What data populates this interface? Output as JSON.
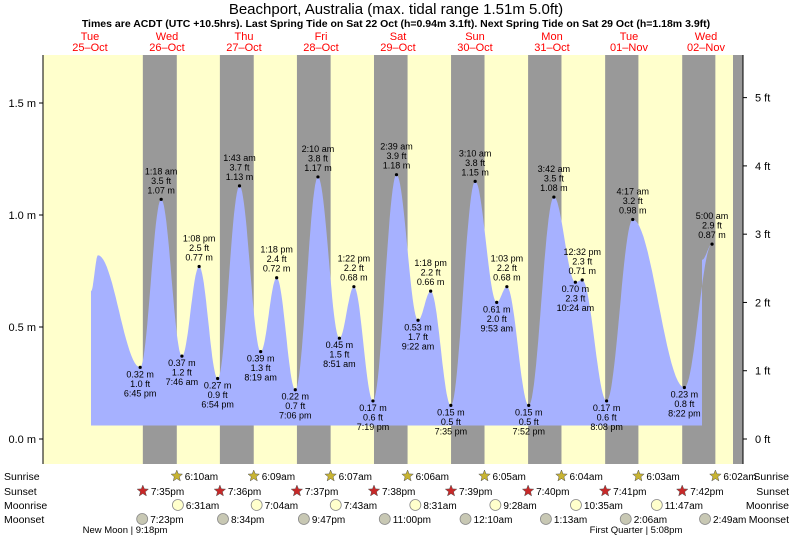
{
  "chart_data": {
    "type": "area",
    "title": "Beachport, Australia (max. tidal range 1.51m 5.0ft)",
    "subtitle": "Times are ACDT (UTC +10.5hrs). Last Spring Tide on Sat 22 Oct (h=0.94m 3.1ft). Next Spring Tide on Sat 29 Oct (h=1.18m 3.9ft)",
    "days": [
      {
        "dow": "Tue",
        "date": "25–Oct"
      },
      {
        "dow": "Wed",
        "date": "26–Oct"
      },
      {
        "dow": "Thu",
        "date": "27–Oct"
      },
      {
        "dow": "Fri",
        "date": "28–Oct"
      },
      {
        "dow": "Sat",
        "date": "29–Oct"
      },
      {
        "dow": "Sun",
        "date": "30–Oct"
      },
      {
        "dow": "Mon",
        "date": "31–Oct"
      },
      {
        "dow": "Tue",
        "date": "01–Nov"
      },
      {
        "dow": "Wed",
        "date": "02–Nov"
      }
    ],
    "y_left": {
      "unit": "m",
      "ylim": [
        -0.04,
        1.7
      ],
      "ticks": [
        {
          "v": 0,
          "label": "0.0 m"
        },
        {
          "v": 0.5,
          "label": "0.5 m"
        },
        {
          "v": 1.0,
          "label": "1.0 m"
        },
        {
          "v": 1.5,
          "label": "1.5 m"
        }
      ]
    },
    "y_right": {
      "unit": "ft",
      "ticks": [
        {
          "v": 0,
          "label": "0 ft"
        },
        {
          "v": 1,
          "label": "1 ft"
        },
        {
          "v": 2,
          "label": "2 ft"
        },
        {
          "v": 3,
          "label": "3 ft"
        },
        {
          "v": 4,
          "label": "4 ft"
        },
        {
          "v": 5,
          "label": "5 ft"
        }
      ]
    },
    "tides": [
      {
        "day": 0,
        "time": "6:45 pm",
        "h": 0.32,
        "ft": "1.0 ft",
        "m": "0.32 m",
        "type": "low"
      },
      {
        "day": 1,
        "time": "1:18 am",
        "h": 1.07,
        "ft": "3.5 ft",
        "m": "1.07 m",
        "type": "high"
      },
      {
        "day": 1,
        "time": "7:46 am",
        "h": 0.37,
        "ft": "1.2 ft",
        "m": "0.37 m",
        "type": "low"
      },
      {
        "day": 1,
        "time": "1:08 pm",
        "h": 0.77,
        "ft": "2.5 ft",
        "m": "0.77 m",
        "type": "high"
      },
      {
        "day": 1,
        "time": "6:54 pm",
        "h": 0.27,
        "ft": "0.9 ft",
        "m": "0.27 m",
        "type": "low"
      },
      {
        "day": 2,
        "time": "1:43 am",
        "h": 1.13,
        "ft": "3.7 ft",
        "m": "1.13 m",
        "type": "high"
      },
      {
        "day": 2,
        "time": "8:19 am",
        "h": 0.39,
        "ft": "1.3 ft",
        "m": "0.39 m",
        "type": "low"
      },
      {
        "day": 2,
        "time": "1:18 pm",
        "h": 0.72,
        "ft": "2.4 ft",
        "m": "0.72 m",
        "type": "high"
      },
      {
        "day": 2,
        "time": "7:06 pm",
        "h": 0.22,
        "ft": "0.7 ft",
        "m": "0.22 m",
        "type": "low"
      },
      {
        "day": 3,
        "time": "2:10 am",
        "h": 1.17,
        "ft": "3.8 ft",
        "m": "1.17 m",
        "type": "high"
      },
      {
        "day": 3,
        "time": "8:51 am",
        "h": 0.45,
        "ft": "1.5 ft",
        "m": "0.45 m",
        "type": "low"
      },
      {
        "day": 3,
        "time": "1:22 pm",
        "h": 0.68,
        "ft": "2.2 ft",
        "m": "0.68 m",
        "type": "high"
      },
      {
        "day": 3,
        "time": "7:19 pm",
        "h": 0.17,
        "ft": "0.6 ft",
        "m": "0.17 m",
        "type": "low"
      },
      {
        "day": 4,
        "time": "2:39 am",
        "h": 1.18,
        "ft": "3.9 ft",
        "m": "1.18 m",
        "type": "high"
      },
      {
        "day": 4,
        "time": "9:22 am",
        "h": 0.53,
        "ft": "1.7 ft",
        "m": "0.53 m",
        "type": "low"
      },
      {
        "day": 4,
        "time": "1:18 pm",
        "h": 0.66,
        "ft": "2.2 ft",
        "m": "0.66 m",
        "type": "high"
      },
      {
        "day": 4,
        "time": "7:35 pm",
        "h": 0.15,
        "ft": "0.5 ft",
        "m": "0.15 m",
        "type": "low"
      },
      {
        "day": 5,
        "time": "3:10 am",
        "h": 1.15,
        "ft": "3.8 ft",
        "m": "1.15 m",
        "type": "high"
      },
      {
        "day": 5,
        "time": "9:53 am",
        "h": 0.61,
        "ft": "2.0 ft",
        "m": "0.61 m",
        "type": "low"
      },
      {
        "day": 5,
        "time": "1:03 pm",
        "h": 0.68,
        "ft": "2.2 ft",
        "m": "0.68 m",
        "type": "high"
      },
      {
        "day": 5,
        "time": "7:52 pm",
        "h": 0.15,
        "ft": "0.5 ft",
        "m": "0.15 m",
        "type": "low"
      },
      {
        "day": 6,
        "time": "3:42 am",
        "h": 1.08,
        "ft": "3.5 ft",
        "m": "1.08 m",
        "type": "high"
      },
      {
        "day": 6,
        "time": "10:24 am",
        "h": 0.7,
        "ft": "2.3 ft",
        "m": "0.70 m",
        "type": "low"
      },
      {
        "day": 6,
        "time": "12:32 pm",
        "h": 0.71,
        "ft": "2.3 ft",
        "m": "0.71 m",
        "type": "high"
      },
      {
        "day": 6,
        "time": "8:08 pm",
        "h": 0.17,
        "ft": "0.6 ft",
        "m": "0.17 m",
        "type": "low"
      },
      {
        "day": 7,
        "time": "4:17 am",
        "h": 0.98,
        "ft": "3.2 ft",
        "m": "0.98 m",
        "type": "high"
      },
      {
        "day": 7,
        "time": "8:22 pm",
        "h": 0.23,
        "ft": "0.8 ft",
        "m": "0.23 m",
        "type": "low"
      },
      {
        "day": 8,
        "time": "5:00 am",
        "h": 0.87,
        "ft": "2.9 ft",
        "m": "0.87 m",
        "type": "high"
      }
    ],
    "row_labels": [
      "Sunrise",
      "Sunset",
      "Moonrise",
      "Moonset"
    ],
    "sunrise": [
      {
        "day": 1,
        "time": "6:10am"
      },
      {
        "day": 2,
        "time": "6:09am"
      },
      {
        "day": 3,
        "time": "6:07am"
      },
      {
        "day": 4,
        "time": "6:06am"
      },
      {
        "day": 5,
        "time": "6:05am"
      },
      {
        "day": 6,
        "time": "6:04am"
      },
      {
        "day": 7,
        "time": "6:03am"
      },
      {
        "day": 8,
        "time": "6:02am"
      }
    ],
    "sunset": [
      {
        "day": 0,
        "time": "7:35pm"
      },
      {
        "day": 1,
        "time": "7:36pm"
      },
      {
        "day": 2,
        "time": "7:37pm"
      },
      {
        "day": 3,
        "time": "7:38pm"
      },
      {
        "day": 4,
        "time": "7:39pm"
      },
      {
        "day": 5,
        "time": "7:40pm"
      },
      {
        "day": 6,
        "time": "7:41pm"
      },
      {
        "day": 7,
        "time": "7:42pm"
      }
    ],
    "moonrise": [
      {
        "day": 1,
        "time": "6:31am"
      },
      {
        "day": 2,
        "time": "7:04am"
      },
      {
        "day": 3,
        "time": "7:43am"
      },
      {
        "day": 4,
        "time": "8:31am"
      },
      {
        "day": 5,
        "time": "9:28am"
      },
      {
        "day": 6,
        "time": "10:35am"
      },
      {
        "day": 7,
        "time": "11:47am"
      }
    ],
    "moonset": [
      {
        "day": 0,
        "time": "7:23pm"
      },
      {
        "day": 1,
        "time": "8:34pm"
      },
      {
        "day": 2,
        "time": "9:47pm"
      },
      {
        "day": 3,
        "time": "11:00pm"
      },
      {
        "day": 5,
        "time": "12:10am"
      },
      {
        "day": 6,
        "time": "1:13am"
      },
      {
        "day": 7,
        "time": "2:06am"
      },
      {
        "day": 8,
        "time": "2:49am"
      }
    ],
    "moon_phases": [
      {
        "label": "New Moon | 9:18pm"
      },
      {
        "label": "First Quarter | 5:08pm"
      }
    ],
    "colors": {
      "day_bg": "#ffffcc",
      "night_bg": "#999999",
      "water": "#a6b1ff",
      "date_red": "#ff0000",
      "sun_yellow": "#c8b432",
      "sunset_red": "#c82828",
      "moonrise": "#ffffcc",
      "moonset": "#c8c8b4"
    }
  }
}
